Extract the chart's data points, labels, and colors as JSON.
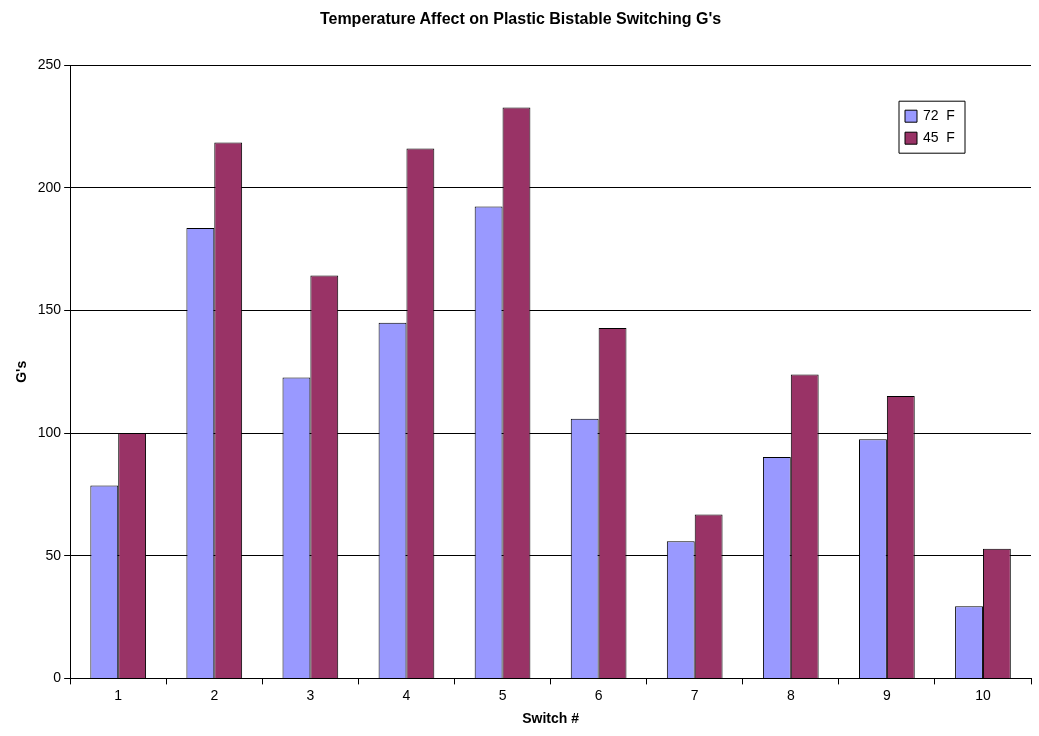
{
  "chart_data": {
    "type": "bar",
    "title": "Temperature Affect on Plastic Bistable Switching G's",
    "xlabel": "Switch #",
    "ylabel": "G's",
    "categories": [
      "1",
      "2",
      "3",
      "4",
      "5",
      "6",
      "7",
      "8",
      "9",
      "10"
    ],
    "series": [
      {
        "name": "72  F",
        "color": "#9999ff",
        "values": [
          78.6,
          183.6,
          122.7,
          145,
          192.4,
          105.9,
          55.9,
          90.3,
          97.5,
          29.4
        ]
      },
      {
        "name": "45  F",
        "color": "#993366",
        "values": [
          100,
          218.5,
          164.3,
          216,
          232.8,
          142.9,
          66.8,
          123.9,
          115.1,
          52.9
        ]
      }
    ],
    "ylim": [
      0,
      250
    ],
    "yticks": [
      0,
      50,
      100,
      150,
      200,
      250
    ],
    "grid": "y",
    "legend": "top right"
  }
}
